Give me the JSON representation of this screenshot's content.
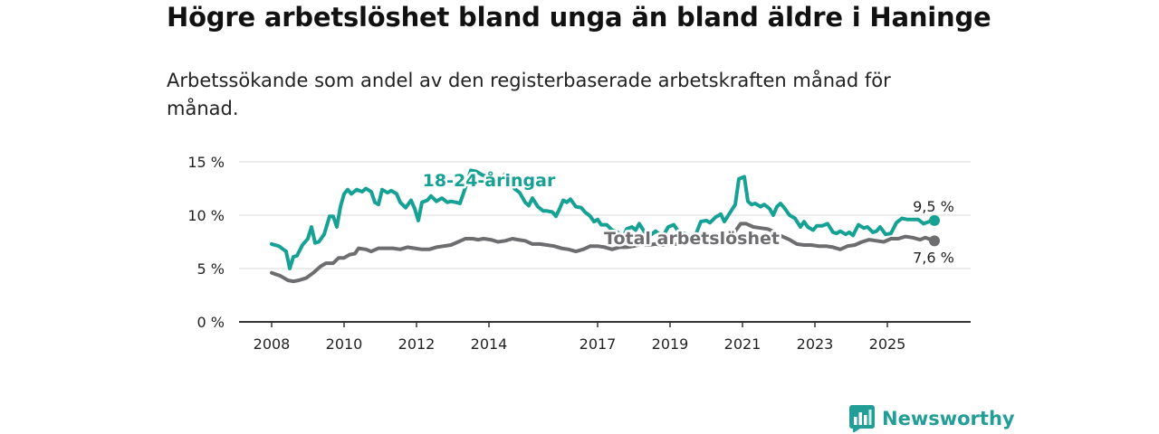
{
  "title": "Högre arbetslöshet bland unga än bland äldre i Haninge",
  "subtitle": "Arbetssökande som andel av den registerbaserade arbetskraften månad för månad.",
  "brand": {
    "name": "Newsworthy",
    "icon": "newsworthy-logo-icon",
    "color": "#239e97"
  },
  "chart_data": {
    "type": "line",
    "title": "Högre arbetslöshet bland unga än bland äldre i Haninge",
    "xlabel": "",
    "ylabel": "",
    "xlim": [
      2008,
      2026.4
    ],
    "ylim": [
      0,
      15
    ],
    "grid": true,
    "y_ticks": [
      {
        "value": 0,
        "label": "0 %"
      },
      {
        "value": 5,
        "label": "5 %"
      },
      {
        "value": 10,
        "label": "10 %"
      },
      {
        "value": 15,
        "label": "15 %"
      }
    ],
    "x_ticks": [
      {
        "value": 2008,
        "label": "2008"
      },
      {
        "value": 2010,
        "label": "2010"
      },
      {
        "value": 2012,
        "label": "2012"
      },
      {
        "value": 2014,
        "label": "2014"
      },
      {
        "value": 2017,
        "label": "2017"
      },
      {
        "value": 2019,
        "label": "2019"
      },
      {
        "value": 2021,
        "label": "2021"
      },
      {
        "value": 2023,
        "label": "2023"
      },
      {
        "value": 2025,
        "label": "2025"
      }
    ],
    "series": [
      {
        "name": "18-24-åringar",
        "color": "#16a195",
        "end_label": "9,5 %",
        "points": [
          [
            2008.0,
            7.3
          ],
          [
            2008.2,
            7.1
          ],
          [
            2008.4,
            6.6
          ],
          [
            2008.5,
            5.0
          ],
          [
            2008.6,
            6.1
          ],
          [
            2008.7,
            6.2
          ],
          [
            2008.85,
            7.2
          ],
          [
            2009.0,
            7.8
          ],
          [
            2009.1,
            8.9
          ],
          [
            2009.2,
            7.4
          ],
          [
            2009.3,
            7.5
          ],
          [
            2009.45,
            8.2
          ],
          [
            2009.6,
            9.9
          ],
          [
            2009.7,
            9.9
          ],
          [
            2009.8,
            8.9
          ],
          [
            2009.9,
            10.8
          ],
          [
            2010.0,
            12.0
          ],
          [
            2010.1,
            12.4
          ],
          [
            2010.2,
            12.0
          ],
          [
            2010.35,
            12.4
          ],
          [
            2010.5,
            12.2
          ],
          [
            2010.6,
            12.5
          ],
          [
            2010.75,
            12.2
          ],
          [
            2010.85,
            11.2
          ],
          [
            2010.95,
            11.0
          ],
          [
            2011.05,
            12.4
          ],
          [
            2011.2,
            12.1
          ],
          [
            2011.3,
            12.3
          ],
          [
            2011.45,
            12.0
          ],
          [
            2011.55,
            11.2
          ],
          [
            2011.7,
            10.7
          ],
          [
            2011.85,
            11.4
          ],
          [
            2011.95,
            10.6
          ],
          [
            2012.05,
            9.5
          ],
          [
            2012.15,
            11.2
          ],
          [
            2012.3,
            11.4
          ],
          [
            2012.4,
            11.8
          ],
          [
            2012.55,
            11.3
          ],
          [
            2012.7,
            11.6
          ],
          [
            2012.85,
            11.2
          ],
          [
            2012.95,
            11.3
          ],
          [
            2013.1,
            11.2
          ],
          [
            2013.2,
            11.1
          ],
          [
            2013.35,
            12.6
          ],
          [
            2013.5,
            14.2
          ],
          [
            2013.65,
            14.1
          ],
          [
            2013.8,
            13.8
          ],
          [
            2013.95,
            13.6
          ],
          [
            2014.1,
            13.4
          ],
          [
            2014.2,
            12.8
          ],
          [
            2014.35,
            13.3
          ],
          [
            2014.45,
            13.9
          ],
          [
            2014.6,
            13.7
          ],
          [
            2014.7,
            12.5
          ],
          [
            2014.85,
            12.1
          ],
          [
            2015.0,
            11.2
          ],
          [
            2015.1,
            10.9
          ],
          [
            2015.2,
            11.6
          ],
          [
            2015.35,
            10.8
          ],
          [
            2015.5,
            10.4
          ],
          [
            2015.6,
            10.4
          ],
          [
            2015.75,
            10.3
          ],
          [
            2015.85,
            9.9
          ],
          [
            2015.95,
            10.6
          ],
          [
            2016.05,
            11.4
          ],
          [
            2016.15,
            11.2
          ],
          [
            2016.25,
            11.5
          ],
          [
            2016.4,
            10.8
          ],
          [
            2016.55,
            10.7
          ],
          [
            2016.65,
            10.3
          ],
          [
            2016.8,
            9.9
          ],
          [
            2016.9,
            9.4
          ],
          [
            2017.0,
            9.6
          ],
          [
            2017.1,
            9.1
          ],
          [
            2017.25,
            9.1
          ],
          [
            2017.4,
            8.6
          ],
          [
            2017.55,
            8.4
          ],
          [
            2017.7,
            7.8
          ],
          [
            2017.8,
            8.7
          ],
          [
            2017.95,
            8.9
          ],
          [
            2018.05,
            8.6
          ],
          [
            2018.15,
            9.2
          ],
          [
            2018.3,
            8.4
          ],
          [
            2018.45,
            8.1
          ],
          [
            2018.6,
            8.5
          ],
          [
            2018.8,
            8.0
          ],
          [
            2018.95,
            8.9
          ],
          [
            2019.1,
            9.1
          ],
          [
            2019.25,
            8.4
          ],
          [
            2019.4,
            8.3
          ],
          [
            2019.55,
            8.0
          ],
          [
            2019.7,
            8.1
          ],
          [
            2019.85,
            9.4
          ],
          [
            2020.0,
            9.5
          ],
          [
            2020.1,
            9.3
          ],
          [
            2020.25,
            9.8
          ],
          [
            2020.4,
            10.1
          ],
          [
            2020.5,
            9.4
          ],
          [
            2020.65,
            10.2
          ],
          [
            2020.8,
            11.0
          ],
          [
            2020.9,
            13.4
          ],
          [
            2021.05,
            13.6
          ],
          [
            2021.15,
            11.3
          ],
          [
            2021.25,
            11.0
          ],
          [
            2021.35,
            11.1
          ],
          [
            2021.5,
            10.8
          ],
          [
            2021.6,
            11.0
          ],
          [
            2021.75,
            10.6
          ],
          [
            2021.85,
            10.0
          ],
          [
            2021.95,
            10.8
          ],
          [
            2022.05,
            11.1
          ],
          [
            2022.15,
            10.7
          ],
          [
            2022.3,
            10.0
          ],
          [
            2022.45,
            9.7
          ],
          [
            2022.6,
            8.9
          ],
          [
            2022.7,
            9.4
          ],
          [
            2022.8,
            8.9
          ],
          [
            2022.95,
            8.6
          ],
          [
            2023.05,
            9.0
          ],
          [
            2023.2,
            9.0
          ],
          [
            2023.35,
            9.2
          ],
          [
            2023.5,
            8.4
          ],
          [
            2023.6,
            8.3
          ],
          [
            2023.7,
            8.5
          ],
          [
            2023.85,
            8.2
          ],
          [
            2023.95,
            8.4
          ],
          [
            2024.05,
            8.1
          ],
          [
            2024.2,
            9.1
          ],
          [
            2024.35,
            8.8
          ],
          [
            2024.45,
            8.9
          ],
          [
            2024.6,
            8.4
          ],
          [
            2024.7,
            8.5
          ],
          [
            2024.8,
            8.9
          ],
          [
            2024.95,
            8.2
          ],
          [
            2025.1,
            8.3
          ],
          [
            2025.25,
            9.3
          ],
          [
            2025.4,
            9.7
          ],
          [
            2025.55,
            9.6
          ],
          [
            2025.7,
            9.6
          ],
          [
            2025.85,
            9.6
          ],
          [
            2026.0,
            9.2
          ],
          [
            2026.15,
            9.4
          ],
          [
            2026.3,
            9.5
          ]
        ]
      },
      {
        "name": "Total arbetslöshet",
        "color": "#6d6d70",
        "end_label": "7,6 %",
        "points": [
          [
            2008.0,
            4.6
          ],
          [
            2008.25,
            4.3
          ],
          [
            2008.45,
            3.9
          ],
          [
            2008.6,
            3.8
          ],
          [
            2008.75,
            3.9
          ],
          [
            2008.95,
            4.1
          ],
          [
            2009.15,
            4.6
          ],
          [
            2009.35,
            5.2
          ],
          [
            2009.5,
            5.5
          ],
          [
            2009.7,
            5.5
          ],
          [
            2009.85,
            6.0
          ],
          [
            2010.0,
            6.0
          ],
          [
            2010.15,
            6.3
          ],
          [
            2010.3,
            6.4
          ],
          [
            2010.4,
            6.9
          ],
          [
            2010.6,
            6.8
          ],
          [
            2010.75,
            6.6
          ],
          [
            2010.95,
            6.9
          ],
          [
            2011.15,
            6.9
          ],
          [
            2011.35,
            6.9
          ],
          [
            2011.55,
            6.8
          ],
          [
            2011.75,
            7.0
          ],
          [
            2011.95,
            6.9
          ],
          [
            2012.15,
            6.8
          ],
          [
            2012.35,
            6.8
          ],
          [
            2012.55,
            7.0
          ],
          [
            2012.75,
            7.1
          ],
          [
            2012.95,
            7.2
          ],
          [
            2013.15,
            7.5
          ],
          [
            2013.35,
            7.8
          ],
          [
            2013.55,
            7.8
          ],
          [
            2013.7,
            7.7
          ],
          [
            2013.85,
            7.8
          ],
          [
            2014.05,
            7.7
          ],
          [
            2014.25,
            7.5
          ],
          [
            2014.45,
            7.6
          ],
          [
            2014.65,
            7.8
          ],
          [
            2014.8,
            7.7
          ],
          [
            2015.0,
            7.6
          ],
          [
            2015.2,
            7.3
          ],
          [
            2015.4,
            7.3
          ],
          [
            2015.6,
            7.2
          ],
          [
            2015.8,
            7.1
          ],
          [
            2016.0,
            6.9
          ],
          [
            2016.2,
            6.8
          ],
          [
            2016.4,
            6.6
          ],
          [
            2016.6,
            6.8
          ],
          [
            2016.8,
            7.1
          ],
          [
            2017.0,
            7.1
          ],
          [
            2017.2,
            7.0
          ],
          [
            2017.4,
            6.8
          ],
          [
            2017.6,
            7.0
          ],
          [
            2017.8,
            7.0
          ],
          [
            2018.0,
            7.1
          ],
          [
            2018.2,
            7.3
          ],
          [
            2018.4,
            7.2
          ],
          [
            2018.6,
            7.3
          ],
          [
            2018.8,
            7.2
          ],
          [
            2019.0,
            7.3
          ],
          [
            2019.2,
            7.3
          ],
          [
            2019.4,
            7.5
          ],
          [
            2019.6,
            7.6
          ],
          [
            2019.8,
            7.7
          ],
          [
            2020.0,
            7.7
          ],
          [
            2020.2,
            7.8
          ],
          [
            2020.4,
            7.9
          ],
          [
            2020.6,
            8.1
          ],
          [
            2020.8,
            8.5
          ],
          [
            2020.95,
            9.2
          ],
          [
            2021.1,
            9.2
          ],
          [
            2021.3,
            8.9
          ],
          [
            2021.5,
            8.8
          ],
          [
            2021.7,
            8.7
          ],
          [
            2021.9,
            8.4
          ],
          [
            2022.1,
            8.0
          ],
          [
            2022.3,
            7.7
          ],
          [
            2022.5,
            7.3
          ],
          [
            2022.7,
            7.2
          ],
          [
            2022.9,
            7.2
          ],
          [
            2023.1,
            7.1
          ],
          [
            2023.3,
            7.1
          ],
          [
            2023.5,
            7.0
          ],
          [
            2023.7,
            6.8
          ],
          [
            2023.9,
            7.1
          ],
          [
            2024.1,
            7.2
          ],
          [
            2024.3,
            7.5
          ],
          [
            2024.5,
            7.7
          ],
          [
            2024.7,
            7.6
          ],
          [
            2024.9,
            7.5
          ],
          [
            2025.1,
            7.8
          ],
          [
            2025.3,
            7.8
          ],
          [
            2025.5,
            8.0
          ],
          [
            2025.7,
            7.9
          ],
          [
            2025.9,
            7.7
          ],
          [
            2026.05,
            7.9
          ],
          [
            2026.2,
            7.7
          ],
          [
            2026.3,
            7.6
          ]
        ]
      }
    ],
    "annotations": [
      {
        "text": "18-24-åringar",
        "series": "18-24-åringar",
        "x": 2014.0,
        "y": 12.7
      },
      {
        "text": "Total arbetslöshet",
        "series": "Total arbetslöshet",
        "x": 2019.6,
        "y": 7.3
      }
    ]
  }
}
